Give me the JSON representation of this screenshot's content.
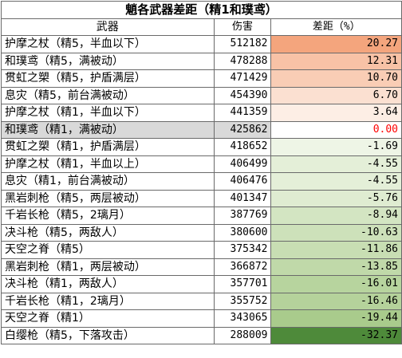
{
  "title": "魈各武器差距（精1和璞鸢）",
  "headers": {
    "name": "武器",
    "damage": "伤害",
    "diff": "差距（%）"
  },
  "rows": [
    {
      "name": "护摩之杖（精5，半血以下）",
      "damage": "512182",
      "diff": "20.27",
      "color": "#f4a57d"
    },
    {
      "name": "和璞鸢（精5，满被动）",
      "damage": "478288",
      "diff": "12.31",
      "color": "#f8c2a6"
    },
    {
      "name": "贯虹之槊（精5，护盾满层）",
      "damage": "471429",
      "diff": "10.70",
      "color": "#f9cdb5"
    },
    {
      "name": "息灾（精5，前台满被动）",
      "damage": "454390",
      "diff": "6.70",
      "color": "#fbe0d1"
    },
    {
      "name": "护摩之杖（精1，半血以下）",
      "damage": "441359",
      "diff": "3.64",
      "color": "#fdeee5"
    },
    {
      "name": "和璞鸢（精1，满被动）",
      "damage": "425862",
      "diff": "0.00",
      "color": "#ffffff",
      "reference": true
    },
    {
      "name": "贯虹之槊（精1，护盾满层）",
      "damage": "418652",
      "diff": "-1.69",
      "color": "#eef5e6"
    },
    {
      "name": "护摩之杖（精1，半血以上）",
      "damage": "406499",
      "diff": "-4.55",
      "color": "#e4efd8"
    },
    {
      "name": "息灾（精1，前台满被动）",
      "damage": "406476",
      "diff": "-4.55",
      "color": "#e4efd8"
    },
    {
      "name": "黑岩刺枪（精5，两层被动）",
      "damage": "401347",
      "diff": "-5.76",
      "color": "#dfecd1"
    },
    {
      "name": "千岩长枪（精5，2璃月）",
      "damage": "387769",
      "diff": "-8.94",
      "color": "#d3e5c2"
    },
    {
      "name": "决斗枪（精5，两敌人）",
      "damage": "380600",
      "diff": "-10.63",
      "color": "#cde1ba"
    },
    {
      "name": "天空之脊（精5）",
      "damage": "375342",
      "diff": "-11.86",
      "color": "#c8deb3"
    },
    {
      "name": "黑岩刺枪（精1，两层被动）",
      "damage": "366872",
      "diff": "-13.85",
      "color": "#c0d9a9"
    },
    {
      "name": "决斗枪（精1，两敌人）",
      "damage": "357701",
      "diff": "-16.01",
      "color": "#b7d49e"
    },
    {
      "name": "千岩长枪（精1，2璃月）",
      "damage": "355752",
      "diff": "-16.46",
      "color": "#b5d29b"
    },
    {
      "name": "天空之脊（精1）",
      "damage": "343065",
      "diff": "-19.44",
      "color": "#a9cb8c"
    },
    {
      "name": "白缨枪（精5，下落攻击）",
      "damage": "288009",
      "diff": "-32.37",
      "color": "#4e8a3a"
    }
  ]
}
